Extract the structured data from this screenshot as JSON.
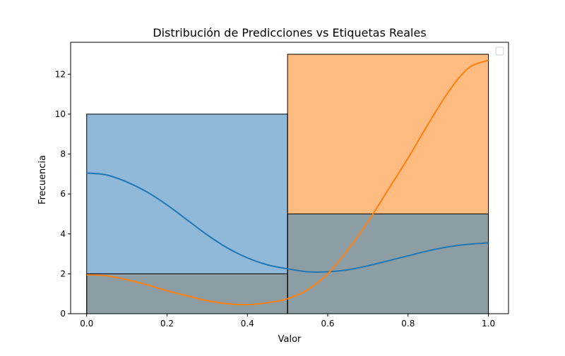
{
  "chart_data": {
    "type": "bar",
    "title": "Distribución de Predicciones vs Etiquetas Reales",
    "xlabel": "Valor",
    "ylabel": "Frecuencia",
    "xlim": [
      -0.04,
      1.05
    ],
    "ylim": [
      0,
      13.6
    ],
    "x_ticks": [
      "0.0",
      "0.2",
      "0.4",
      "0.6",
      "0.8",
      "1.0"
    ],
    "x_tick_values": [
      0.0,
      0.2,
      0.4,
      0.6,
      0.8,
      1.0
    ],
    "y_ticks": [
      "0",
      "2",
      "4",
      "6",
      "8",
      "10",
      "12"
    ],
    "y_tick_values": [
      0,
      2,
      4,
      6,
      8,
      10,
      12
    ],
    "legend": {
      "placement": "top-right",
      "entries": []
    },
    "bins": [
      [
        0.0,
        0.5
      ],
      [
        0.5,
        1.0
      ]
    ],
    "series": [
      {
        "color": "#1f77b4",
        "bar_fill": "#8fb8d9",
        "values": [
          10,
          5
        ],
        "kde": {
          "x": [
            0.0,
            0.05,
            0.1,
            0.15,
            0.2,
            0.25,
            0.3,
            0.35,
            0.4,
            0.45,
            0.5,
            0.55,
            0.6,
            0.65,
            0.7,
            0.75,
            0.8,
            0.85,
            0.9,
            0.95,
            1.0
          ],
          "y": [
            7.05,
            6.95,
            6.6,
            6.1,
            5.45,
            4.7,
            3.95,
            3.3,
            2.8,
            2.45,
            2.25,
            2.1,
            2.1,
            2.2,
            2.4,
            2.65,
            2.9,
            3.15,
            3.35,
            3.48,
            3.55
          ]
        }
      },
      {
        "color": "#ff7f0e",
        "bar_fill": "#ffbb80",
        "values": [
          2,
          13
        ],
        "kde": {
          "x": [
            0.0,
            0.05,
            0.1,
            0.15,
            0.2,
            0.25,
            0.3,
            0.35,
            0.4,
            0.45,
            0.5,
            0.55,
            0.6,
            0.65,
            0.7,
            0.75,
            0.8,
            0.85,
            0.9,
            0.95,
            1.0
          ],
          "y": [
            1.95,
            1.9,
            1.7,
            1.45,
            1.15,
            0.9,
            0.65,
            0.5,
            0.45,
            0.55,
            0.75,
            1.2,
            2.0,
            3.2,
            4.6,
            6.2,
            7.8,
            9.5,
            11.1,
            12.3,
            12.7
          ]
        }
      }
    ],
    "overlap_fill": "#8c9ea4",
    "grid": false
  }
}
